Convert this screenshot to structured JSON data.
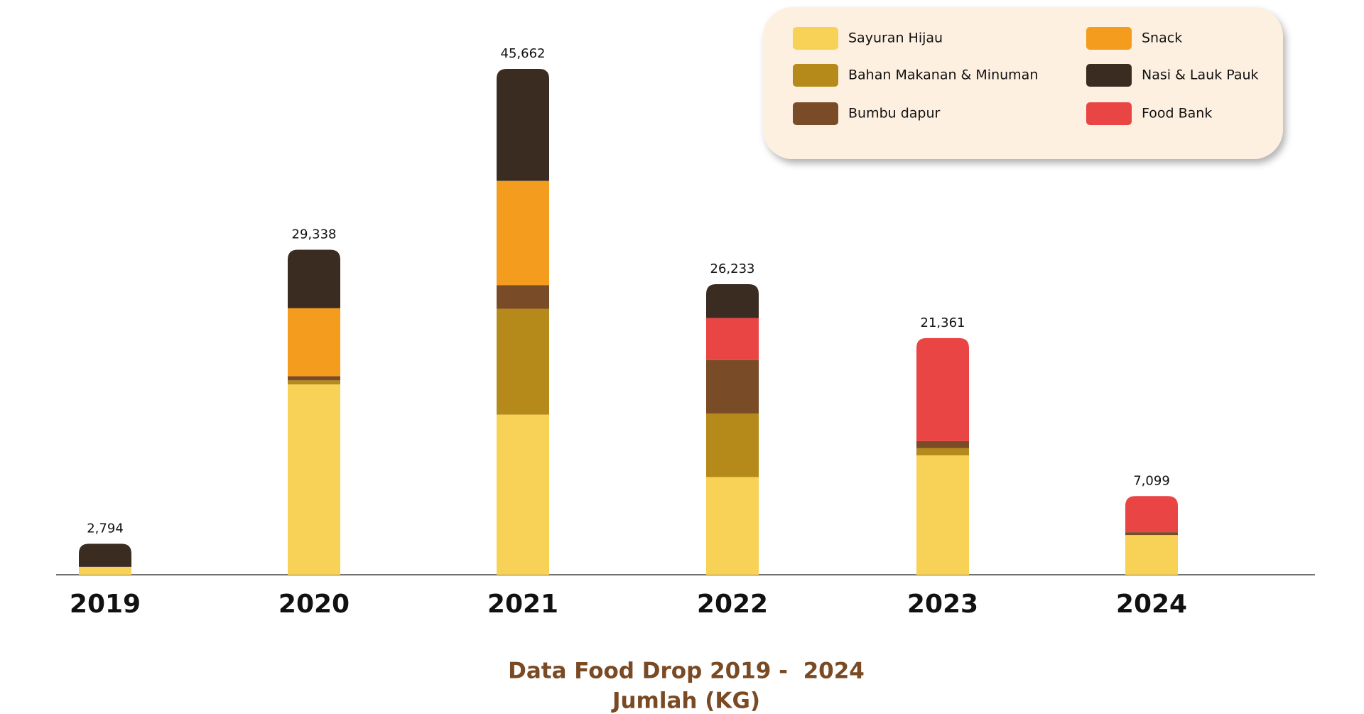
{
  "chart_data": {
    "type": "stacked_bar",
    "title": "Data Food Drop 2019 -  2024",
    "subtitle": "Jumlah (KG)",
    "categories": [
      "2019",
      "2020",
      "2021",
      "2022",
      "2023",
      "2024"
    ],
    "series": [
      {
        "name": "Sayuran Hijau",
        "color": "#f8d257",
        "values": [
          711,
          17180,
          14457,
          8820,
          10782,
          3584
        ]
      },
      {
        "name": "Bahan Makanan & Minuman",
        "color": "#b58a1a",
        "values": [
          0,
          370,
          9559,
          5740,
          643,
          0
        ]
      },
      {
        "name": "Bumbu dapur",
        "color": "#7a4b27",
        "values": [
          0,
          370,
          2133,
          4830,
          643,
          256
        ]
      },
      {
        "name": "Snack",
        "color": "#f39c1e",
        "values": [
          0,
          6140,
          9401,
          0,
          0,
          0
        ]
      },
      {
        "name": "Food Bank",
        "color": "#ea4545",
        "values": [
          0,
          0,
          0,
          3780,
          9293,
          3259
        ]
      },
      {
        "name": "Nasi & Lauk Pauk",
        "color": "#3b2c22",
        "values": [
          2083,
          5278,
          10112,
          3063,
          0,
          0
        ]
      }
    ],
    "totals": [
      2794,
      29338,
      45662,
      26233,
      21361,
      7099
    ],
    "total_labels": [
      "2,794",
      "29,338",
      "45,662",
      "26,233",
      "21,361",
      "7,099"
    ]
  }
}
